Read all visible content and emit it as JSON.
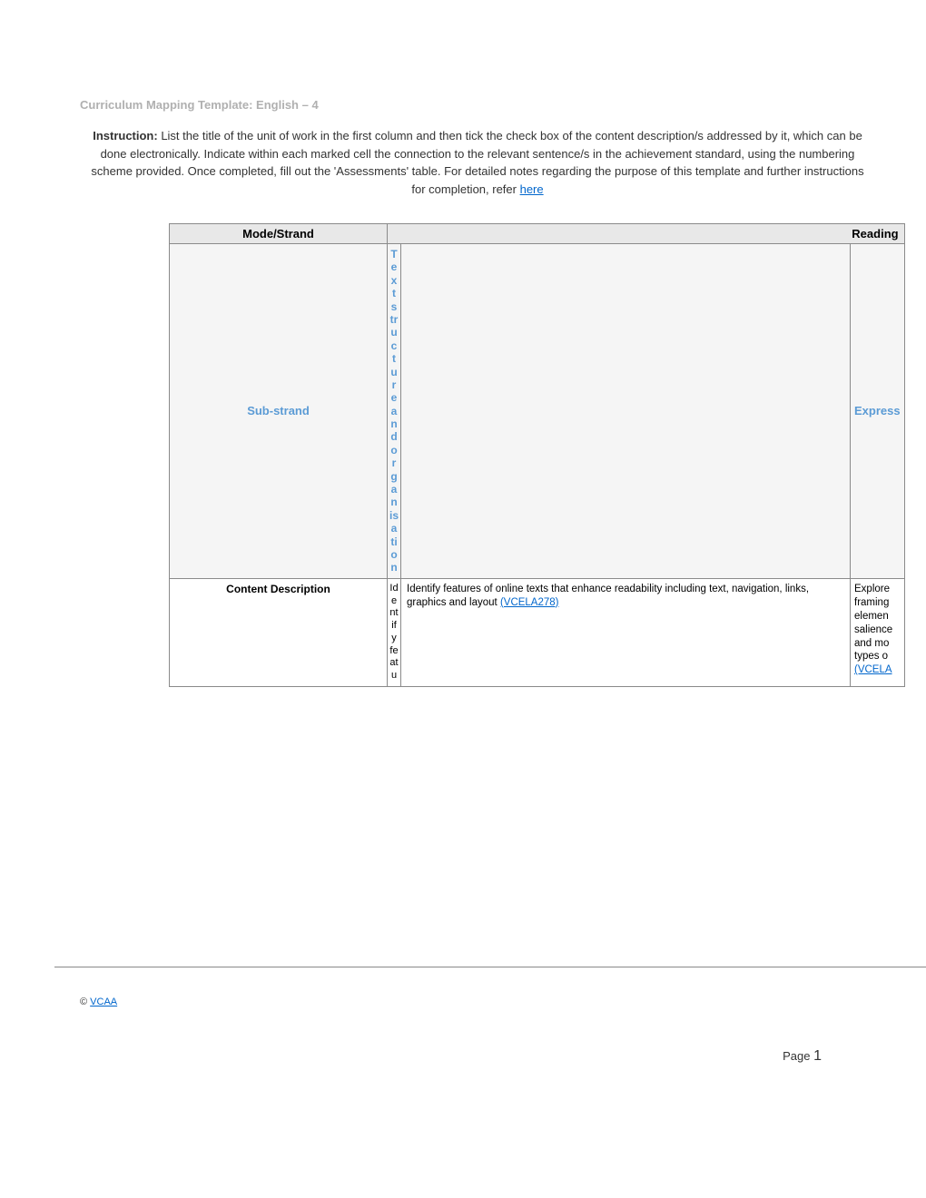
{
  "header": {
    "title": "Curriculum Mapping Template: English – 4"
  },
  "instruction": {
    "label": "Instruction:",
    "text": " List the title of the unit of work in the first column and then tick the check box of the content description/s addressed by it, which can be done electronically. Indicate within each marked cell the connection to the relevant sentence/s in the achievement standard, using the numbering scheme provided. Once completed, fill out the 'Assessments' table. For detailed notes regarding the purpose of this template and further instructions for completion, refer ",
    "link": "here"
  },
  "table": {
    "mode_strand": {
      "label": "Mode/Strand",
      "value": "Reading"
    },
    "sub_strand": {
      "label": "Sub-strand",
      "col1": "Text structure and organisation",
      "col3_partial": "Express"
    },
    "content_desc": {
      "label": "Content Description",
      "col1_vertical": "Identify featu",
      "col2_text": "Identify features of online texts that enhance readability including text, navigation, links, graphics and layout ",
      "col2_code": "(VCELA278)",
      "col3_lines": {
        "l1": "Explore",
        "l2": "framing",
        "l3": "elemen",
        "l4": "salience",
        "l5": "and mo",
        "l6": "types o",
        "l7": "(VCELA"
      }
    }
  },
  "footer": {
    "copyright": "©",
    "vcaa": "VCAA",
    "page_label": "Page ",
    "page_num": "1"
  },
  "colors": {
    "gray_text": "#b0b0b0",
    "link": "#0066cc",
    "strand_blue": "#5b9bd5",
    "header_bg": "#e8e8e8",
    "sub_bg": "#f5f5f5",
    "border": "#8a8a8a"
  }
}
